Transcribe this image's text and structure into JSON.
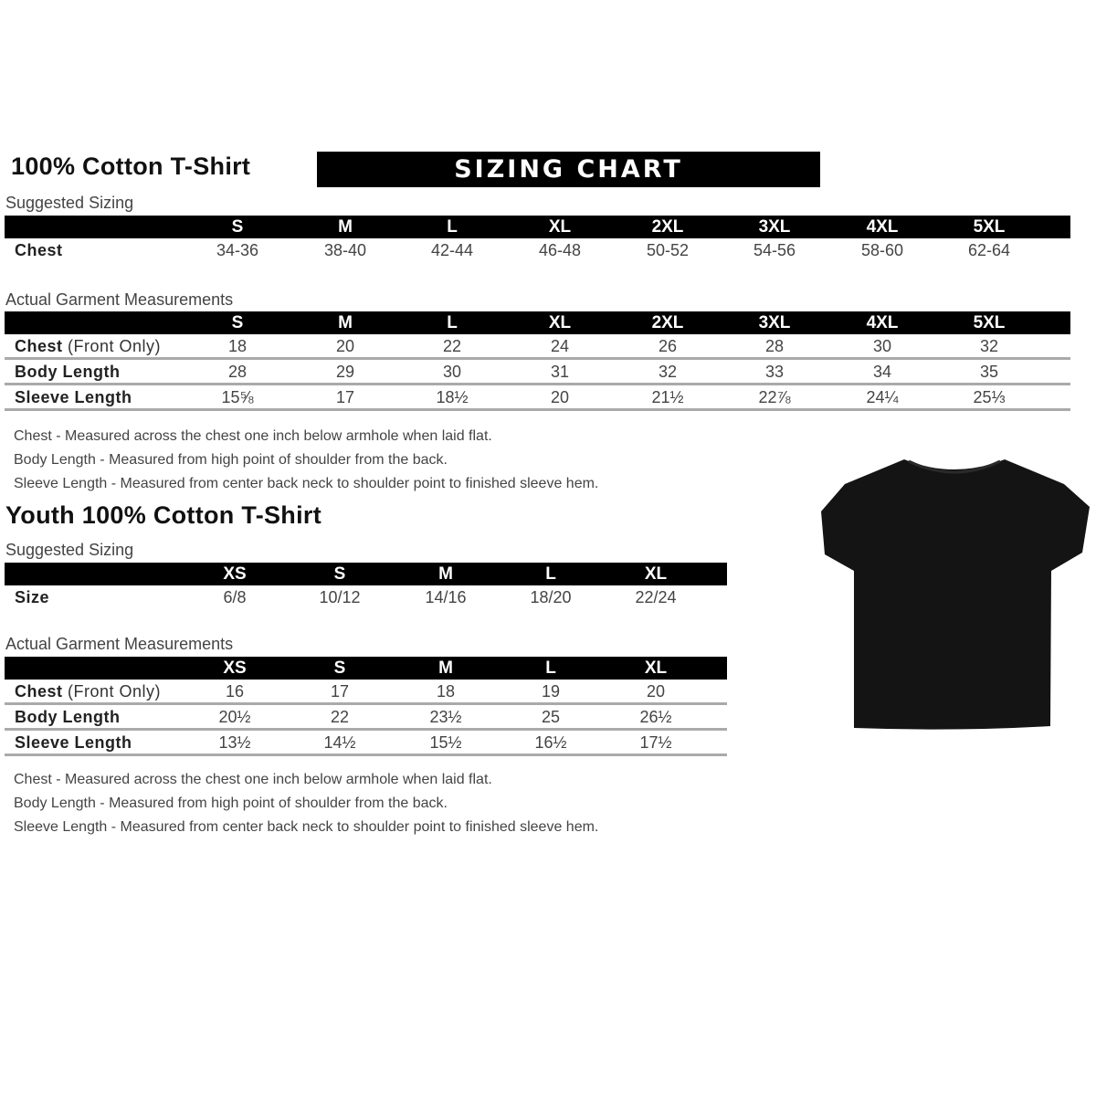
{
  "adult": {
    "title": "100% Cotton T-Shirt",
    "banner": "SIZING CHART",
    "suggested_label": "Suggested Sizing",
    "sizes": [
      "S",
      "M",
      "L",
      "XL",
      "2XL",
      "3XL",
      "4XL",
      "5XL"
    ],
    "suggested_rows": [
      {
        "label": "Chest",
        "label_note": "",
        "values": [
          "34-36",
          "38-40",
          "42-44",
          "46-48",
          "50-52",
          "54-56",
          "58-60",
          "62-64"
        ]
      }
    ],
    "measurements_label": "Actual Garment Measurements",
    "measurement_rows": [
      {
        "label": "Chest",
        "label_note": " (Front Only)",
        "values": [
          "18",
          "20",
          "22",
          "24",
          "26",
          "28",
          "30",
          "32"
        ]
      },
      {
        "label": "Body Length",
        "label_note": "",
        "values": [
          "28",
          "29",
          "30",
          "31",
          "32",
          "33",
          "34",
          "35"
        ]
      },
      {
        "label": "Sleeve Length",
        "label_note": "",
        "values": [
          "15⅝",
          "17",
          "18½",
          "20",
          "21½",
          "22⅞",
          "24¼",
          "25⅓"
        ]
      }
    ],
    "notes": [
      "Chest - Measured across the chest one inch below armhole when laid flat.",
      "Body Length - Measured from high point of shoulder from the back.",
      "Sleeve Length - Measured from center back neck to shoulder point to finished sleeve hem."
    ]
  },
  "youth": {
    "title": "Youth 100% Cotton T-Shirt",
    "suggested_label": "Suggested Sizing",
    "sizes": [
      "XS",
      "S",
      "M",
      "L",
      "XL"
    ],
    "suggested_rows": [
      {
        "label": "Size",
        "label_note": "",
        "values": [
          "6/8",
          "10/12",
          "14/16",
          "18/20",
          "22/24"
        ]
      }
    ],
    "measurements_label": "Actual Garment Measurements",
    "measurement_rows": [
      {
        "label": "Chest",
        "label_note": " (Front Only)",
        "values": [
          "16",
          "17",
          "18",
          "19",
          "20"
        ]
      },
      {
        "label": "Body Length",
        "label_note": "",
        "values": [
          "20½",
          "22",
          "23½",
          "25",
          "26½"
        ]
      },
      {
        "label": "Sleeve Length",
        "label_note": "",
        "values": [
          "13½",
          "14½",
          "15½",
          "16½",
          "17½"
        ]
      }
    ],
    "notes": [
      "Chest - Measured across the chest one inch below armhole when laid flat.",
      "Body Length - Measured from high point of shoulder from the back.",
      "Sleeve Length - Measured from center back neck to shoulder point to finished sleeve hem."
    ]
  },
  "image": {
    "icon": "t-shirt-icon",
    "color": "#111111"
  }
}
